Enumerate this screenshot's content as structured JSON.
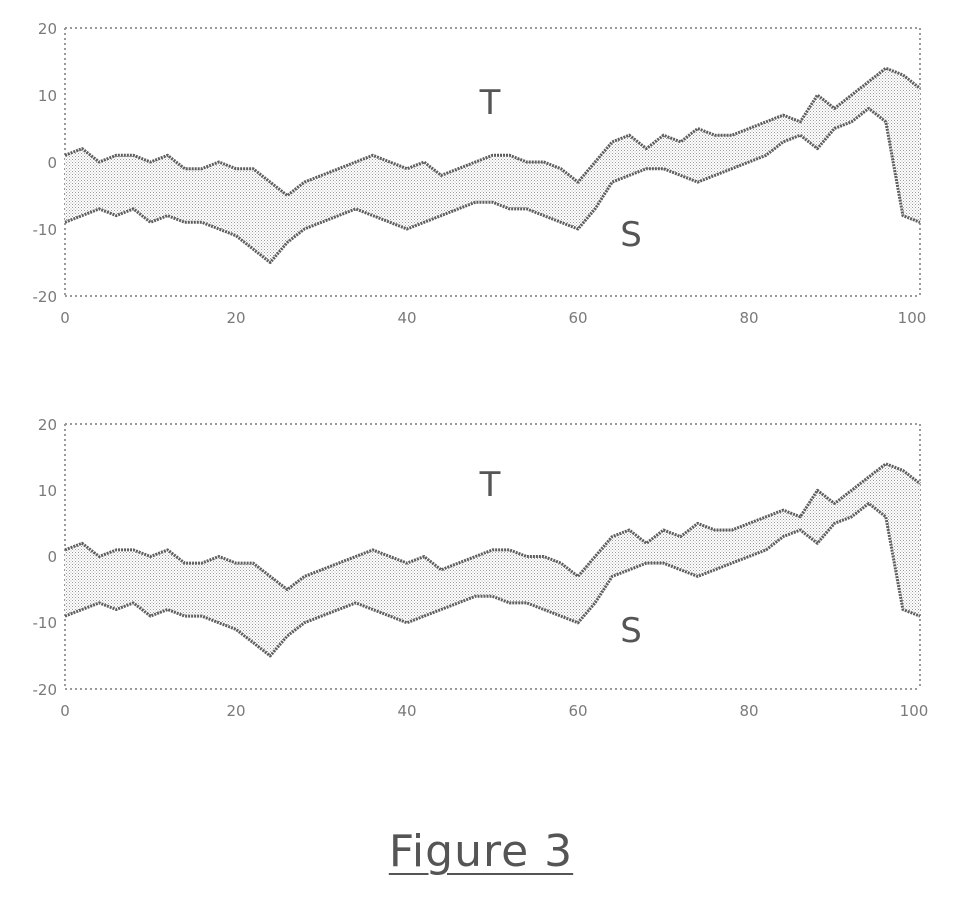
{
  "figure": {
    "caption": "Figure 3"
  },
  "chart_data": [
    {
      "type": "area",
      "title": "",
      "xlabel": "",
      "ylabel": "",
      "xlim": [
        0,
        100
      ],
      "ylim": [
        -20,
        20
      ],
      "x_ticks": [
        0,
        20,
        40,
        60,
        80,
        100
      ],
      "y_ticks": [
        20,
        10,
        0,
        -10,
        -20
      ],
      "x_tick_labels": [
        "0",
        "20",
        "40",
        "60",
        "80",
        "100"
      ],
      "y_tick_labels": [
        "20",
        "10",
        "0",
        "-10",
        "-20"
      ],
      "grid": "dotted frame",
      "fill": "band between T and S",
      "annotations": [
        "T",
        "S"
      ],
      "series": [
        {
          "name": "T",
          "x": [
            0,
            2,
            4,
            6,
            8,
            10,
            12,
            14,
            16,
            18,
            20,
            22,
            24,
            26,
            28,
            30,
            32,
            34,
            36,
            38,
            40,
            42,
            44,
            46,
            48,
            50,
            52,
            54,
            56,
            58,
            60,
            62,
            64,
            66,
            68,
            70,
            72,
            74,
            76,
            78,
            80,
            82,
            84,
            86,
            88,
            90,
            92,
            94,
            96,
            98,
            100
          ],
          "values": [
            1,
            2,
            0,
            1,
            1,
            0,
            1,
            -1,
            -1,
            0,
            -1,
            -1,
            -3,
            -5,
            -3,
            -2,
            -1,
            0,
            1,
            0,
            -1,
            0,
            -2,
            -1,
            0,
            1,
            1,
            0,
            0,
            -1,
            -3,
            0,
            3,
            4,
            2,
            4,
            3,
            5,
            4,
            4,
            5,
            6,
            7,
            6,
            10,
            8,
            10,
            12,
            14,
            13,
            11
          ]
        },
        {
          "name": "S",
          "x": [
            0,
            2,
            4,
            6,
            8,
            10,
            12,
            14,
            16,
            18,
            20,
            22,
            24,
            26,
            28,
            30,
            32,
            34,
            36,
            38,
            40,
            42,
            44,
            46,
            48,
            50,
            52,
            54,
            56,
            58,
            60,
            62,
            64,
            66,
            68,
            70,
            72,
            74,
            76,
            78,
            80,
            82,
            84,
            86,
            88,
            90,
            92,
            94,
            96,
            98,
            100
          ],
          "values": [
            -9,
            -8,
            -7,
            -8,
            -7,
            -9,
            -8,
            -9,
            -9,
            -10,
            -11,
            -13,
            -15,
            -12,
            -10,
            -9,
            -8,
            -7,
            -8,
            -9,
            -10,
            -9,
            -8,
            -7,
            -6,
            -6,
            -7,
            -7,
            -8,
            -9,
            -10,
            -7,
            -3,
            -2,
            -1,
            -1,
            -2,
            -3,
            -2,
            -1,
            0,
            1,
            3,
            4,
            2,
            5,
            6,
            8,
            6,
            -8,
            -9
          ]
        }
      ]
    },
    {
      "type": "area",
      "title": "",
      "xlabel": "",
      "ylabel": "",
      "xlim": [
        0,
        100
      ],
      "ylim": [
        -20,
        20
      ],
      "x_ticks": [
        0,
        20,
        40,
        60,
        80,
        100
      ],
      "y_ticks": [
        20,
        10,
        0,
        -10,
        -20
      ],
      "x_tick_labels": [
        "0",
        "20",
        "40",
        "60",
        "80",
        "100"
      ],
      "y_tick_labels": [
        "20",
        "10",
        "0",
        "-10",
        "-20"
      ],
      "grid": "dotted frame",
      "fill": "band between T and S",
      "annotations": [
        "T",
        "S"
      ],
      "series": [
        {
          "name": "T",
          "x": [
            0,
            2,
            4,
            6,
            8,
            10,
            12,
            14,
            16,
            18,
            20,
            22,
            24,
            26,
            28,
            30,
            32,
            34,
            36,
            38,
            40,
            42,
            44,
            46,
            48,
            50,
            52,
            54,
            56,
            58,
            60,
            62,
            64,
            66,
            68,
            70,
            72,
            74,
            76,
            78,
            80,
            82,
            84,
            86,
            88,
            90,
            92,
            94,
            96,
            98,
            100
          ],
          "values": [
            1,
            2,
            0,
            1,
            1,
            0,
            1,
            -1,
            -1,
            0,
            -1,
            -1,
            -3,
            -5,
            -3,
            -2,
            -1,
            0,
            1,
            0,
            -1,
            0,
            -2,
            -1,
            0,
            1,
            1,
            0,
            0,
            -1,
            -3,
            0,
            3,
            4,
            2,
            4,
            3,
            5,
            4,
            4,
            5,
            6,
            7,
            6,
            10,
            8,
            10,
            12,
            14,
            13,
            11
          ]
        },
        {
          "name": "S",
          "x": [
            0,
            2,
            4,
            6,
            8,
            10,
            12,
            14,
            16,
            18,
            20,
            22,
            24,
            26,
            28,
            30,
            32,
            34,
            36,
            38,
            40,
            42,
            44,
            46,
            48,
            50,
            52,
            54,
            56,
            58,
            60,
            62,
            64,
            66,
            68,
            70,
            72,
            74,
            76,
            78,
            80,
            82,
            84,
            86,
            88,
            90,
            92,
            94,
            96,
            98,
            100
          ],
          "values": [
            -9,
            -8,
            -7,
            -8,
            -7,
            -9,
            -8,
            -9,
            -9,
            -10,
            -11,
            -13,
            -15,
            -12,
            -10,
            -9,
            -8,
            -7,
            -8,
            -9,
            -10,
            -9,
            -8,
            -7,
            -6,
            -6,
            -7,
            -7,
            -8,
            -9,
            -10,
            -7,
            -3,
            -2,
            -1,
            -1,
            -2,
            -3,
            -2,
            -1,
            0,
            1,
            3,
            4,
            2,
            5,
            6,
            8,
            6,
            -8,
            -9
          ]
        }
      ]
    }
  ]
}
